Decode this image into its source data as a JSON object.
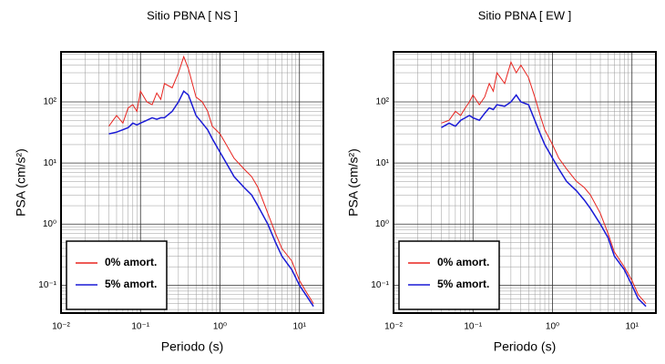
{
  "chart_data": [
    {
      "type": "line",
      "title": "Sitio PBNA [ NS ]",
      "xlabel": "Periodo (s)",
      "ylabel": "PSA (cm/s²)",
      "xscale": "log",
      "yscale": "log",
      "grid": true,
      "legend": "lower left",
      "xlim": [
        0.01,
        20
      ],
      "ylim": [
        0.035,
        660
      ],
      "xticks": [
        {
          "value": 0.01,
          "label": "10⁻²"
        },
        {
          "value": 0.1,
          "label": "10⁻¹"
        },
        {
          "value": 1,
          "label": "10⁰"
        },
        {
          "value": 10,
          "label": "10¹"
        }
      ],
      "yticks": [
        {
          "value": 0.1,
          "label": "10⁻¹"
        },
        {
          "value": 1,
          "label": "10⁰"
        },
        {
          "value": 10,
          "label": "10¹"
        },
        {
          "value": 100,
          "label": "10²"
        }
      ],
      "x": [
        0.04,
        0.05,
        0.06,
        0.07,
        0.08,
        0.09,
        0.1,
        0.12,
        0.14,
        0.16,
        0.18,
        0.2,
        0.25,
        0.3,
        0.35,
        0.4,
        0.5,
        0.6,
        0.7,
        0.8,
        1,
        1.2,
        1.5,
        2,
        2.5,
        3,
        4,
        5,
        6,
        8,
        10,
        12,
        15
      ],
      "series": [
        {
          "name": "0% amort.",
          "color": "#e8231e",
          "values": [
            40,
            60,
            45,
            80,
            90,
            70,
            150,
            100,
            90,
            140,
            110,
            200,
            170,
            300,
            550,
            350,
            120,
            100,
            70,
            40,
            30,
            20,
            12,
            8,
            6,
            4,
            1.5,
            0.7,
            0.4,
            0.25,
            0.12,
            0.08,
            0.05
          ]
        },
        {
          "name": "5% amort.",
          "color": "#1a1ad6",
          "values": [
            30,
            32,
            35,
            38,
            45,
            42,
            45,
            50,
            55,
            52,
            55,
            55,
            70,
            100,
            150,
            130,
            60,
            45,
            35,
            25,
            15,
            10,
            6,
            4,
            3,
            2,
            1,
            0.5,
            0.3,
            0.18,
            0.1,
            0.07,
            0.045
          ]
        }
      ]
    },
    {
      "type": "line",
      "title": "Sitio PBNA [ EW ]",
      "xlabel": "Periodo (s)",
      "ylabel": "PSA (cm/s²)",
      "xscale": "log",
      "yscale": "log",
      "grid": true,
      "legend": "lower left",
      "xlim": [
        0.01,
        20
      ],
      "ylim": [
        0.035,
        660
      ],
      "xticks": [
        {
          "value": 0.01,
          "label": "10⁻²"
        },
        {
          "value": 0.1,
          "label": "10⁻¹"
        },
        {
          "value": 1,
          "label": "10⁰"
        },
        {
          "value": 10,
          "label": "10¹"
        }
      ],
      "yticks": [
        {
          "value": 0.1,
          "label": "10⁻¹"
        },
        {
          "value": 1,
          "label": "10⁰"
        },
        {
          "value": 10,
          "label": "10¹"
        },
        {
          "value": 100,
          "label": "10²"
        }
      ],
      "x": [
        0.04,
        0.05,
        0.06,
        0.07,
        0.08,
        0.09,
        0.1,
        0.12,
        0.14,
        0.16,
        0.18,
        0.2,
        0.25,
        0.3,
        0.35,
        0.4,
        0.5,
        0.6,
        0.7,
        0.8,
        1,
        1.2,
        1.5,
        2,
        2.5,
        3,
        4,
        5,
        6,
        8,
        10,
        12,
        15
      ],
      "series": [
        {
          "name": "0% amort.",
          "color": "#e8231e",
          "values": [
            45,
            50,
            70,
            60,
            80,
            100,
            130,
            90,
            120,
            200,
            150,
            300,
            200,
            450,
            300,
            400,
            250,
            120,
            60,
            35,
            20,
            12,
            8,
            5,
            4,
            3,
            1.5,
            0.7,
            0.35,
            0.2,
            0.12,
            0.07,
            0.05
          ]
        },
        {
          "name": "5% amort.",
          "color": "#1a1ad6",
          "values": [
            38,
            45,
            40,
            50,
            55,
            60,
            55,
            50,
            65,
            80,
            75,
            90,
            85,
            100,
            130,
            100,
            90,
            50,
            30,
            20,
            12,
            8,
            5,
            3.5,
            2.5,
            1.8,
            1,
            0.6,
            0.3,
            0.18,
            0.1,
            0.06,
            0.045
          ]
        }
      ]
    }
  ]
}
